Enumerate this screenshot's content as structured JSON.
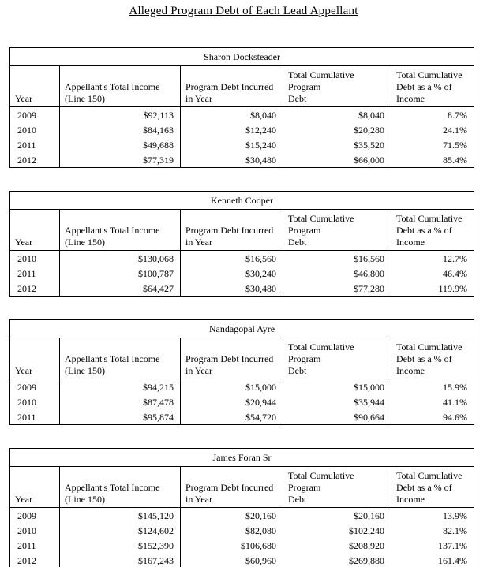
{
  "page_title": "Alleged Program Debt of Each Lead Appellant",
  "columns": [
    "Year",
    "Appellant's Total Income\n(Line 150)",
    "Program Debt Incurred\nin Year",
    "Total Cumulative Program\nDebt",
    "Total Cumulative\nDebt as a % of\nIncome"
  ],
  "tables": [
    {
      "name": "Sharon Docksteader",
      "rows": [
        [
          "2009",
          "$92,113",
          "$8,040",
          "$8,040",
          "8.7%"
        ],
        [
          "2010",
          "$84,163",
          "$12,240",
          "$20,280",
          "24.1%"
        ],
        [
          "2011",
          "$49,688",
          "$15,240",
          "$35,520",
          "71.5%"
        ],
        [
          "2012",
          "$77,319",
          "$30,480",
          "$66,000",
          "85.4%"
        ]
      ]
    },
    {
      "name": "Kenneth Cooper",
      "rows": [
        [
          "2010",
          "$130,068",
          "$16,560",
          "$16,560",
          "12.7%"
        ],
        [
          "2011",
          "$100,787",
          "$30,240",
          "$46,800",
          "46.4%"
        ],
        [
          "2012",
          "$64,427",
          "$30,480",
          "$77,280",
          "119.9%"
        ]
      ]
    },
    {
      "name": "Nandagopal Ayre",
      "rows": [
        [
          "2009",
          "$94,215",
          "$15,000",
          "$15,000",
          "15.9%"
        ],
        [
          "2010",
          "$87,478",
          "$20,944",
          "$35,944",
          "41.1%"
        ],
        [
          "2011",
          "$95,874",
          "$54,720",
          "$90,664",
          "94.6%"
        ]
      ]
    },
    {
      "name": "James Foran Sr",
      "rows": [
        [
          "2009",
          "$145,120",
          "$20,160",
          "$20,160",
          "13.9%"
        ],
        [
          "2010",
          "$124,602",
          "$82,080",
          "$102,240",
          "82.1%"
        ],
        [
          "2011",
          "$152,390",
          "$106,680",
          "$208,920",
          "137.1%"
        ],
        [
          "2012",
          "$167,243",
          "$60,960",
          "$269,880",
          "161.4%"
        ]
      ]
    }
  ]
}
